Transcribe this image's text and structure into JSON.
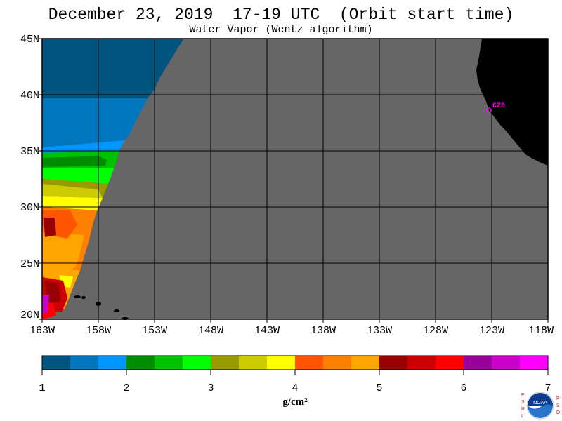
{
  "header": {
    "title": "December 23, 2019  17-19 UTC  (Orbit start time)",
    "subtitle": "Water Vapor (Wentz algorithm)"
  },
  "map": {
    "lat_labels": [
      "45N",
      "40N",
      "35N",
      "30N",
      "25N",
      "20N"
    ],
    "lon_labels": [
      "163W",
      "158W",
      "153W",
      "148W",
      "143W",
      "138W",
      "133W",
      "128W",
      "123W",
      "118W"
    ],
    "station_label": "CZD",
    "no_data_color": "#666666",
    "land_color": "#000000"
  },
  "colorbar": {
    "ticks": [
      "1",
      "2",
      "3",
      "4",
      "5",
      "6",
      "7"
    ],
    "units": "g/cm²",
    "colors": [
      "#00557f",
      "#0076bf",
      "#0096ff",
      "#008c00",
      "#00c300",
      "#00ff00",
      "#999900",
      "#cccc00",
      "#ffff00",
      "#ff5500",
      "#ff7f00",
      "#ffa500",
      "#990000",
      "#cc0000",
      "#ff0000",
      "#990099",
      "#cc00cc",
      "#ff00ff"
    ]
  },
  "logo": {
    "left_letters": [
      "E",
      "S",
      "R",
      "L"
    ],
    "right_letters": [
      "P",
      "S",
      "D"
    ],
    "center_text": "NOAA"
  }
}
